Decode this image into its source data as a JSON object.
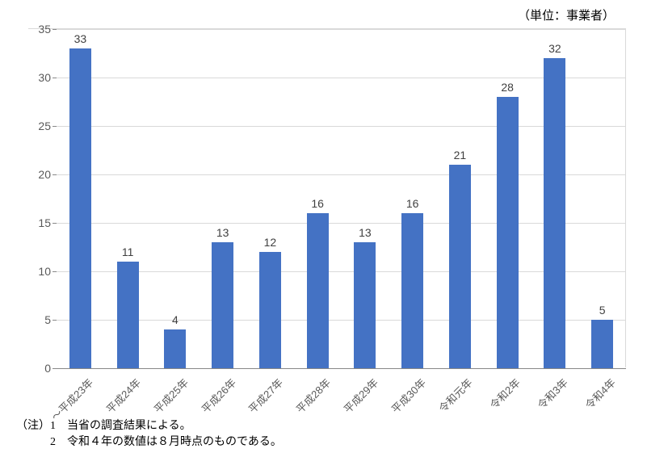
{
  "unit_label": "（単位：事業者）",
  "chart": {
    "type": "bar",
    "bar_color": "#4472c4",
    "background_color": "#ffffff",
    "grid_color": "#d9d9d9",
    "axis_color": "#888888",
    "label_color": "#404040",
    "tick_color": "#595959",
    "ylim": [
      0,
      35
    ],
    "ytick_step": 5,
    "yticks": [
      0,
      5,
      10,
      15,
      20,
      25,
      30,
      35
    ],
    "bar_width_ratio": 0.46,
    "label_fontsize": 14,
    "tick_fontsize": 14,
    "xlabel_fontsize": 13,
    "xlabel_rotation": -45,
    "categories": [
      "～平成23年",
      "平成24年",
      "平成25年",
      "平成26年",
      "平成27年",
      "平成28年",
      "平成29年",
      "平成30年",
      "令和元年",
      "令和2年",
      "令和3年",
      "令和4年"
    ],
    "values": [
      33,
      11,
      4,
      13,
      12,
      16,
      13,
      16,
      21,
      28,
      32,
      5
    ]
  },
  "notes": {
    "prefix": "（注）",
    "items": [
      {
        "num": "1",
        "text": "当省の調査結果による。"
      },
      {
        "num": "2",
        "text": "令和４年の数値は８月時点のものである。"
      }
    ]
  }
}
